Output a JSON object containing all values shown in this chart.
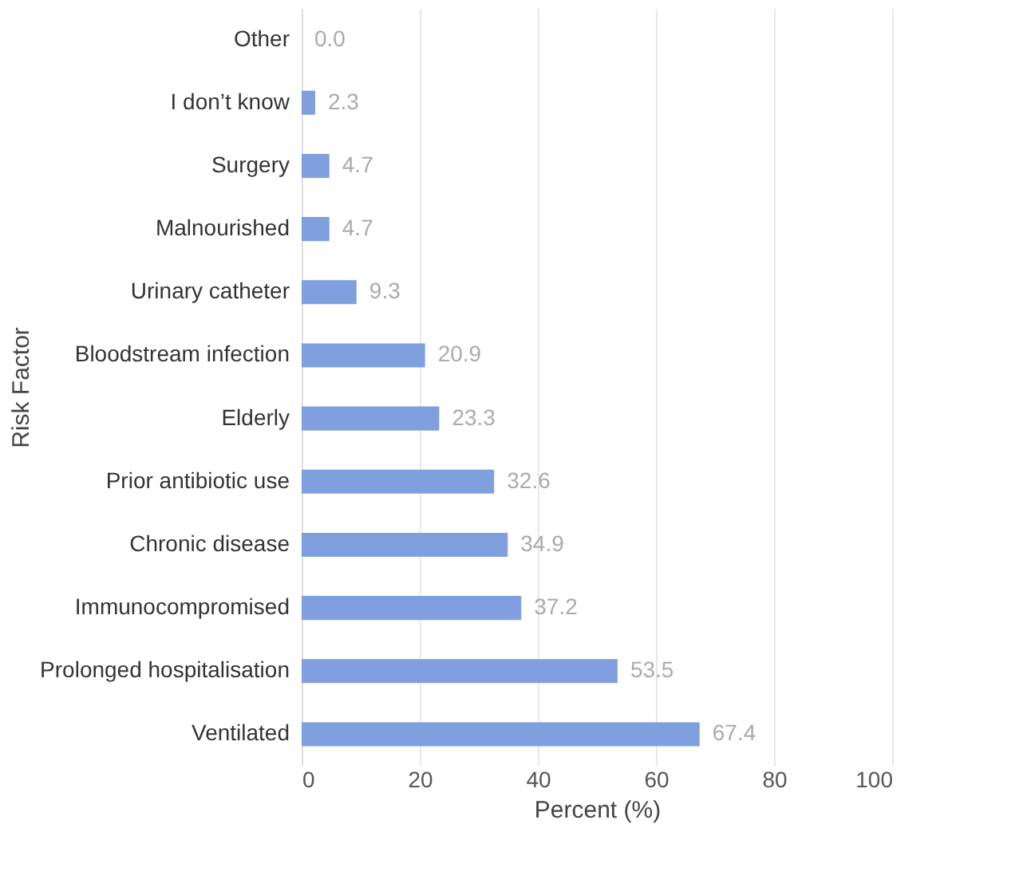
{
  "chart_data": {
    "type": "bar",
    "orientation": "horizontal",
    "xlabel": "Percent (%)",
    "ylabel": "Risk Factor",
    "categories": [
      "Other",
      "I don’t know",
      "Surgery",
      "Malnourished",
      "Urinary catheter",
      "Bloodstream infection",
      "Elderly",
      "Prior antibiotic use",
      "Chronic disease",
      "Immunocompromised",
      "Prolonged hospitalisation",
      "Ventilated"
    ],
    "values": [
      0.0,
      2.3,
      4.7,
      4.7,
      9.3,
      20.9,
      23.3,
      32.6,
      34.9,
      37.2,
      53.5,
      67.4
    ],
    "value_labels": [
      "0.0",
      "2.3",
      "4.7",
      "4.7",
      "9.3",
      "20.9",
      "23.3",
      "32.6",
      "34.9",
      "37.2",
      "53.5",
      "67.4"
    ],
    "color": "#7f9fdf",
    "xlim": [
      0,
      100
    ],
    "xticks": [
      0,
      20,
      40,
      60,
      80,
      100
    ],
    "grid": "x"
  }
}
